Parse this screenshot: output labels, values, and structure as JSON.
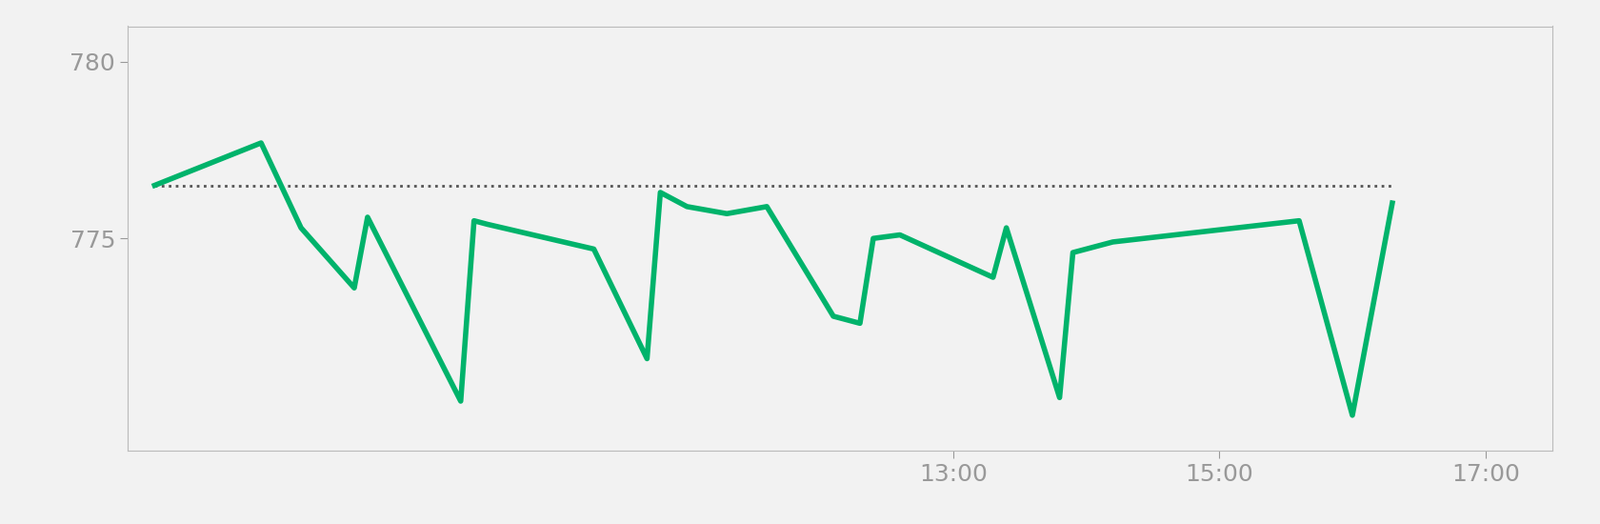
{
  "chart_data": {
    "type": "line",
    "x": [
      7.0,
      7.8,
      8.1,
      8.5,
      8.6,
      9.3,
      9.4,
      9.5,
      10.3,
      10.7,
      10.8,
      11.0,
      11.3,
      11.6,
      12.1,
      12.3,
      12.4,
      12.6,
      13.3,
      13.4,
      13.8,
      13.9,
      14.2,
      15.6,
      16.0,
      16.3
    ],
    "series": [
      {
        "color": "#00b36b",
        "line_style": "solid",
        "values": [
          776.5,
          777.7,
          775.3,
          773.6,
          775.6,
          770.4,
          775.5,
          775.4,
          774.7,
          771.6,
          776.3,
          775.9,
          775.7,
          775.9,
          772.8,
          772.6,
          775.0,
          775.1,
          773.9,
          775.3,
          770.5,
          774.6,
          774.9,
          775.5,
          770.0,
          776.0
        ]
      },
      {
        "color": "#555555",
        "line_style": "dotted",
        "values": [
          776.5,
          776.5,
          776.5,
          776.5,
          776.5,
          776.5,
          776.5,
          776.5,
          776.5,
          776.5,
          776.5,
          776.5,
          776.5,
          776.5,
          776.5,
          776.5,
          776.5,
          776.5,
          776.5,
          776.5,
          776.5,
          776.5,
          776.5,
          776.5,
          776.5,
          776.5
        ]
      }
    ],
    "xlim": [
      6.8,
      17.5
    ],
    "xticks": [
      {
        "value": 13,
        "label": "13:00"
      },
      {
        "value": 15,
        "label": "15:00"
      },
      {
        "value": 17,
        "label": "17:00"
      }
    ],
    "ylim": [
      769,
      781
    ],
    "yticks": [
      775,
      780
    ],
    "grid": false
  }
}
